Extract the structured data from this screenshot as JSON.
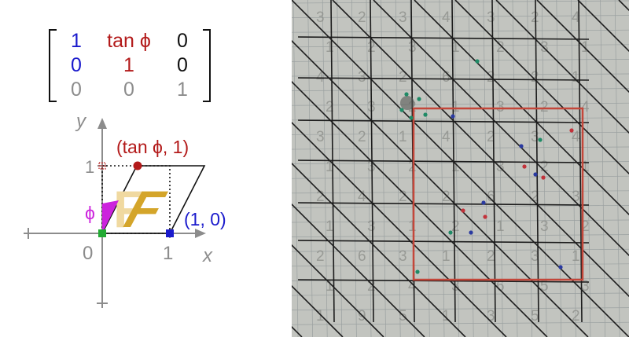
{
  "matrix": {
    "rows": [
      [
        {
          "t": "1",
          "c": "blue"
        },
        {
          "t": "tan ϕ",
          "c": "red"
        },
        {
          "t": "0",
          "c": "black"
        }
      ],
      [
        {
          "t": "0",
          "c": "blue"
        },
        {
          "t": "1",
          "c": "red"
        },
        {
          "t": "0",
          "c": "black"
        }
      ],
      [
        {
          "t": "0",
          "c": "gray"
        },
        {
          "t": "0",
          "c": "gray"
        },
        {
          "t": "1",
          "c": "gray"
        }
      ]
    ]
  },
  "axes": {
    "x_label": "x",
    "y_label": "y",
    "origin_label": "0",
    "x_tick_label": "1",
    "y_tick_label": "1"
  },
  "annotations": {
    "tan_point": "(tan ϕ, 1)",
    "unit_x_point": "(1, 0)",
    "angle_label": "ϕ"
  },
  "glyph": {
    "letter": "F",
    "sheared_letter": "F"
  },
  "colors": {
    "blue": "#1a1acc",
    "red": "#b31a1a",
    "black": "#111111",
    "gray": "#8c8c8c",
    "magenta": "#cc22dd",
    "gold": "#d4a52a",
    "gold_light": "#f0d9a0",
    "green": "#22aa33",
    "paper": "#c2c4bf",
    "grid": "#9aa0a0",
    "ink": "#1c1c1c",
    "faded_ink": "#8a8c88",
    "square": "#c4473a",
    "dot_green": "#1f8a66",
    "dot_blue": "#2a3aa0",
    "dot_red": "#c2323a"
  },
  "photo": {
    "digit_rows": [
      [
        "3",
        "2",
        "3",
        "4",
        "3",
        "2",
        "4"
      ],
      [
        "1",
        "2",
        "3",
        "1",
        "2",
        "3",
        "1"
      ],
      [
        "4",
        "3",
        "2",
        "6",
        "2",
        "2",
        "1"
      ],
      [
        "2",
        "3",
        "2",
        "1",
        "3",
        "2",
        "4"
      ],
      [
        "3",
        "2",
        "1",
        "4",
        "2",
        "3",
        "4"
      ],
      [
        "1",
        "3",
        "2",
        "1",
        "3",
        "2",
        "1"
      ],
      [
        "2",
        "4",
        "2",
        "2",
        "6",
        "2",
        "3"
      ],
      [
        "1",
        "3",
        "1",
        "2",
        "1",
        "3",
        "2"
      ],
      [
        "2",
        "6",
        "3",
        "1",
        "2",
        "3",
        "1"
      ],
      [
        "1",
        "2",
        "4",
        "3",
        "6",
        "5",
        "3"
      ],
      [
        "1",
        "9",
        "5",
        "1",
        "3",
        "5",
        "2"
      ]
    ]
  }
}
